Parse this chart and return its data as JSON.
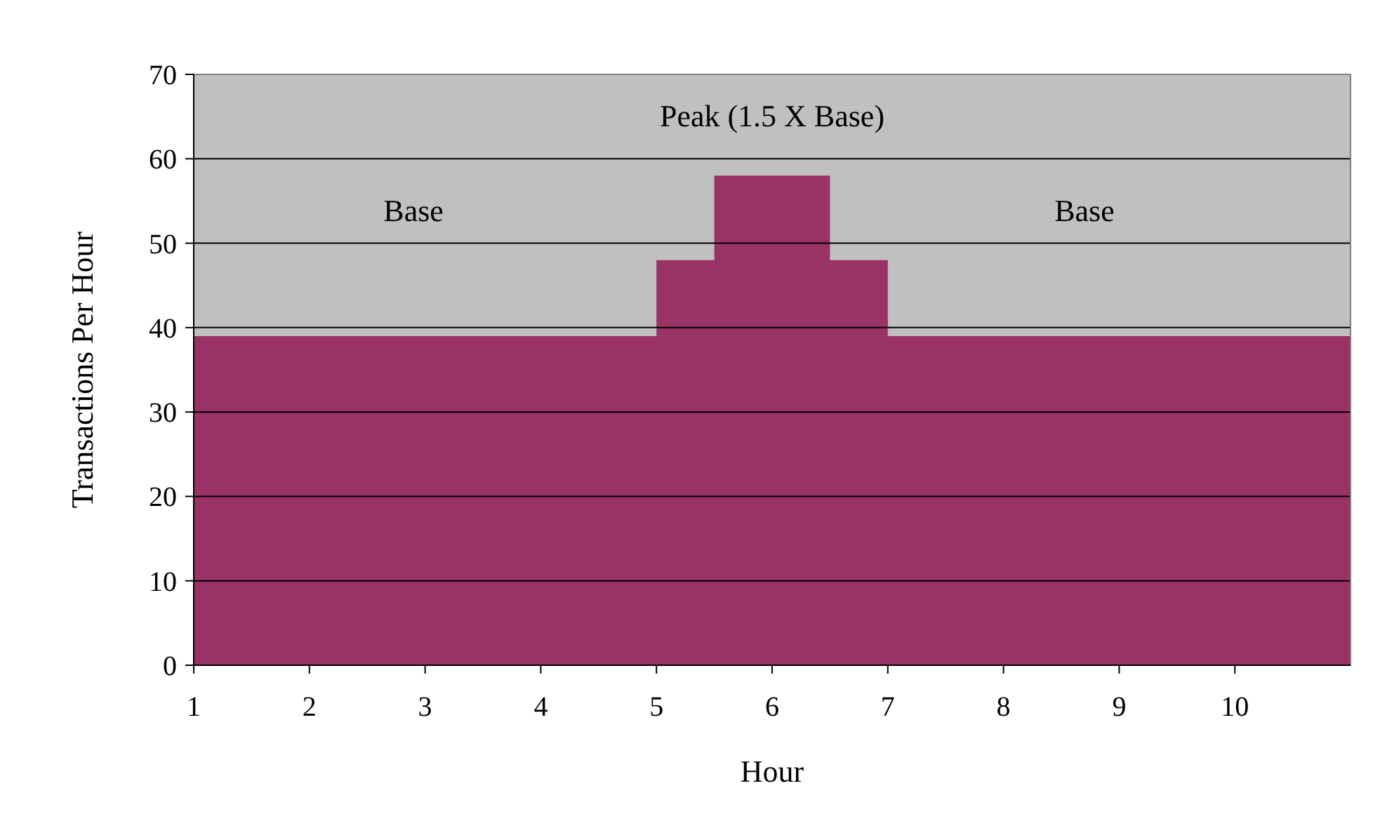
{
  "chart_data": {
    "type": "area",
    "xlabel": "Hour",
    "ylabel": "Transactions Per Hour",
    "x": [
      1,
      5,
      5,
      5.5,
      5.5,
      6.5,
      6.5,
      7,
      7,
      11
    ],
    "values": [
      39,
      39,
      48,
      48,
      58,
      58,
      48,
      48,
      39,
      39
    ],
    "color": "#993366",
    "xlim": [
      1,
      11
    ],
    "xticks": [
      1,
      2,
      3,
      4,
      5,
      6,
      7,
      8,
      9,
      10
    ],
    "ylim": [
      0,
      70
    ],
    "yticks": [
      0,
      10,
      20,
      30,
      40,
      50,
      60,
      70
    ],
    "grid": "y",
    "annotations": [
      "Peak (1.5 X Base)",
      "Base",
      "Base"
    ]
  }
}
